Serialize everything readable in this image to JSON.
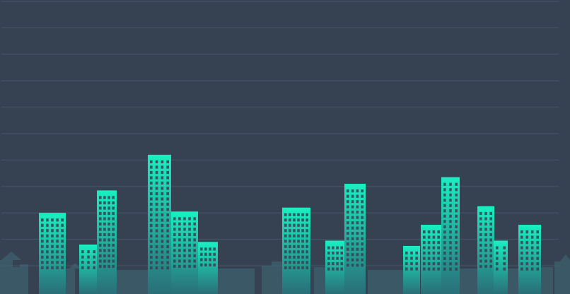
{
  "colors": {
    "background": "#364252",
    "grid": "#46566a",
    "building_light": "#19f0c2",
    "building_dark": "#2a6e78",
    "window": "#364252",
    "skyline_silhouette": "#3e6b76"
  },
  "chart_data": {
    "type": "bar",
    "style": "pictorial-building",
    "title": "",
    "xlabel": "",
    "ylabel": "",
    "grid": true,
    "legend": "none",
    "ylim": [
      0,
      10
    ],
    "categories": [],
    "clusters": [
      {
        "buildings": [
          {
            "value": 2.0
          },
          {
            "value": 0.8
          },
          {
            "value": 2.85
          }
        ]
      },
      {
        "buildings": [
          {
            "value": 4.2
          },
          {
            "value": 2.05
          },
          {
            "value": 0.9
          }
        ]
      },
      {
        "buildings": [
          {
            "value": 2.2
          },
          {
            "value": 0.95
          },
          {
            "value": 3.1
          }
        ]
      },
      {
        "buildings": [
          {
            "value": 0.75
          },
          {
            "value": 1.55
          },
          {
            "value": 3.35
          }
        ]
      },
      {
        "buildings": [
          {
            "value": 2.25
          },
          {
            "value": 0.95
          },
          {
            "value": 1.55
          }
        ]
      }
    ]
  }
}
